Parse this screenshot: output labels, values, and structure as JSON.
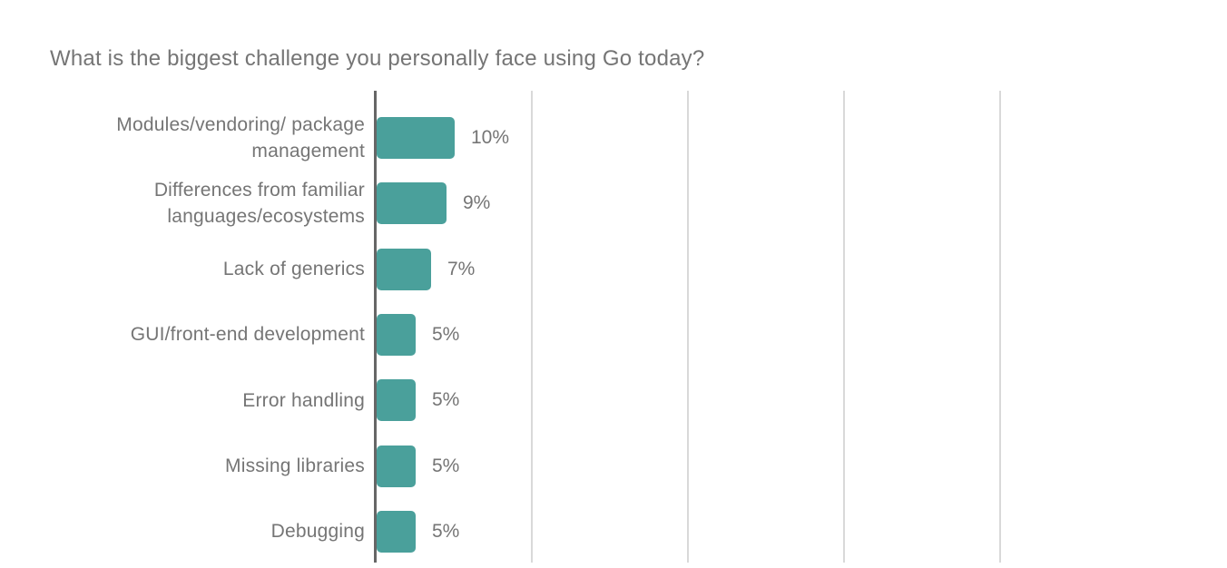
{
  "chart_data": {
    "type": "bar",
    "orientation": "horizontal",
    "title": "What is the biggest challenge you personally face using Go today?",
    "categories": [
      "Modules/vendoring/ package management",
      "Differences from familiar languages/ecosystems",
      "Lack of generics",
      "GUI/front-end development",
      "Error handling",
      "Missing libraries",
      "Debugging"
    ],
    "values": [
      10,
      9,
      7,
      5,
      5,
      5,
      5
    ],
    "value_labels": [
      "10%",
      "9%",
      "7%",
      "5%",
      "5%",
      "5%",
      "5%"
    ],
    "xlabel": "",
    "ylabel": "",
    "xlim": [
      0,
      109
    ],
    "gridlines_percent": [
      20,
      40,
      60,
      80
    ],
    "grid": true,
    "legend": "none",
    "colors": {
      "bar": "#4AA09B",
      "grid": "#D9D9D9",
      "axis": "#666666",
      "text": "#757575",
      "background": "#FFFFFF"
    }
  }
}
